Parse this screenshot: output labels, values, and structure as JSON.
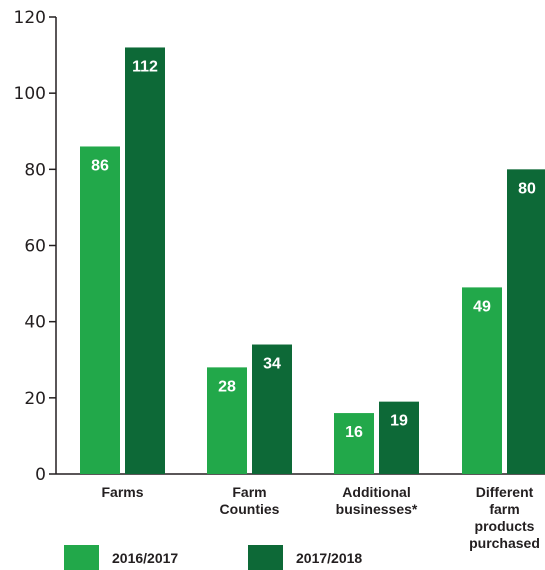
{
  "chart_data": {
    "type": "bar",
    "categories": [
      [
        "Farms"
      ],
      [
        "Farm",
        "Counties"
      ],
      [
        "Additional",
        "businesses*"
      ],
      [
        "Different",
        "farm",
        "products",
        "purchased"
      ]
    ],
    "series": [
      {
        "name": "2016/2017",
        "values": [
          86,
          28,
          16,
          49
        ],
        "color": "#22a84a"
      },
      {
        "name": "2017/2018",
        "values": [
          112,
          34,
          19,
          80
        ],
        "color": "#0d6937"
      }
    ],
    "ylim": [
      0,
      120
    ],
    "yticks": [
      0,
      20,
      40,
      60,
      80,
      100,
      120
    ],
    "grid": false,
    "legend": "bottom-left"
  }
}
